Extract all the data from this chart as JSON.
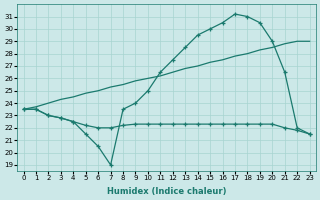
{
  "xlabel": "Humidex (Indice chaleur)",
  "x_hours": [
    0,
    1,
    2,
    3,
    4,
    5,
    6,
    7,
    8,
    9,
    10,
    11,
    12,
    13,
    14,
    15,
    16,
    17,
    18,
    19,
    20,
    21,
    22,
    23
  ],
  "curve_humidex": [
    23.5,
    23.5,
    23.0,
    22.8,
    22.5,
    21.5,
    20.5,
    19.0,
    23.5,
    24.0,
    25.0,
    26.5,
    27.5,
    28.5,
    29.5,
    30.0,
    30.5,
    31.2,
    31.0,
    30.5,
    29.0,
    26.5,
    22.0,
    21.5
  ],
  "curve_linear": [
    23.5,
    23.7,
    24.0,
    24.3,
    24.5,
    24.8,
    25.0,
    25.3,
    25.5,
    25.8,
    26.0,
    26.2,
    26.5,
    26.8,
    27.0,
    27.3,
    27.5,
    27.8,
    28.0,
    28.3,
    28.5,
    28.8,
    29.0,
    29.0
  ],
  "curve_flat": [
    23.5,
    23.5,
    23.0,
    22.8,
    22.5,
    22.2,
    22.0,
    22.0,
    22.2,
    22.3,
    22.3,
    22.3,
    22.3,
    22.3,
    22.3,
    22.3,
    22.3,
    22.3,
    22.3,
    22.3,
    22.3,
    22.0,
    21.8,
    21.5
  ],
  "ylim": [
    18.5,
    32.0
  ],
  "xlim": [
    -0.5,
    23.5
  ],
  "yticks": [
    19,
    20,
    21,
    22,
    23,
    24,
    25,
    26,
    27,
    28,
    29,
    30,
    31
  ],
  "xticks": [
    0,
    1,
    2,
    3,
    4,
    5,
    6,
    7,
    8,
    9,
    10,
    11,
    12,
    13,
    14,
    15,
    16,
    17,
    18,
    19,
    20,
    21,
    22,
    23
  ],
  "line_color": "#1b7a6e",
  "bg_color": "#cce8e8",
  "grid_color": "#a8d4d0"
}
